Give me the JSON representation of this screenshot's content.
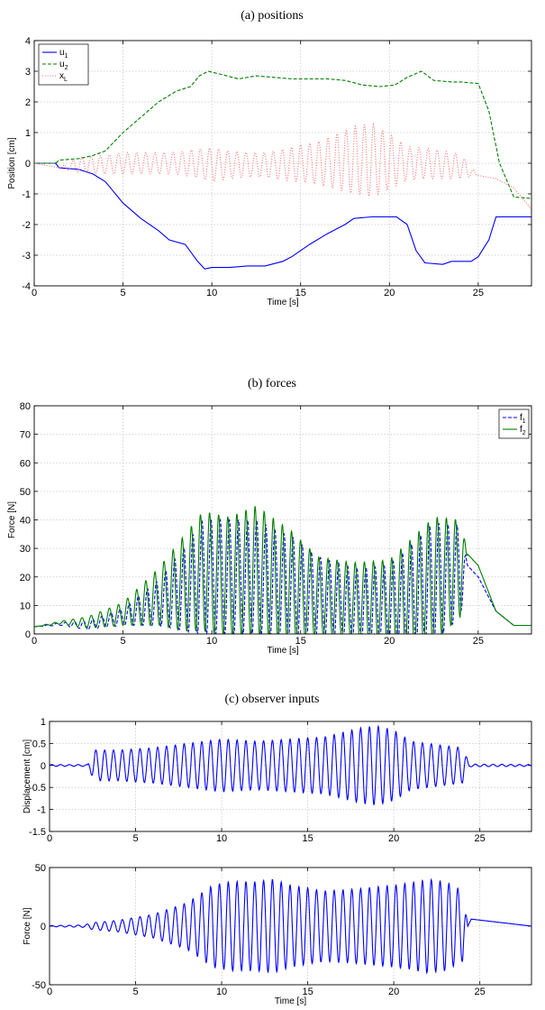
{
  "chart_data": [
    {
      "type": "line",
      "caption": "(a)  positions",
      "xlabel": "Time [s]",
      "ylabel": "Position [cm]",
      "xlim": [
        0,
        28
      ],
      "ylim": [
        -4,
        4
      ],
      "xticks": [
        "0",
        "5",
        "10",
        "15",
        "20",
        "25"
      ],
      "yticks": [
        "-4",
        "-3",
        "-2",
        "-1",
        "0",
        "1",
        "2",
        "3",
        "4"
      ],
      "grid": true,
      "legend": "top-left",
      "series": [
        {
          "name": "u",
          "sub": "1",
          "color": "#0000ff",
          "style": "solid",
          "x": [
            0,
            1.2,
            1.4,
            2.5,
            3.3,
            4,
            5,
            6,
            7,
            7.6,
            8.5,
            9.2,
            9.6,
            10,
            11,
            12,
            13,
            14,
            14.5,
            15.5,
            16.5,
            17.5,
            18,
            19,
            19.8,
            20.4,
            21,
            21.5,
            22,
            23,
            23.5,
            24,
            24.6,
            25,
            25.6,
            26,
            28
          ],
          "y": [
            0,
            0,
            -0.15,
            -0.2,
            -0.35,
            -0.6,
            -1.3,
            -1.8,
            -2.2,
            -2.5,
            -2.65,
            -3.2,
            -3.45,
            -3.4,
            -3.4,
            -3.35,
            -3.35,
            -3.2,
            -3.05,
            -2.65,
            -2.3,
            -2.0,
            -1.8,
            -1.75,
            -1.75,
            -1.75,
            -2.0,
            -2.85,
            -3.25,
            -3.3,
            -3.2,
            -3.2,
            -3.2,
            -3.05,
            -2.5,
            -1.75,
            -1.75
          ]
        },
        {
          "name": "u",
          "sub": "2",
          "color": "#007f00",
          "style": "dashed",
          "x": [
            0,
            1.2,
            1.4,
            2.5,
            3.3,
            4,
            5,
            6,
            7,
            8,
            8.8,
            9.3,
            9.8,
            10.5,
            11.5,
            12.5,
            13.5,
            14.5,
            15.5,
            16.5,
            17.5,
            18.5,
            19.5,
            20.3,
            21,
            21.8,
            22.5,
            23.5,
            24,
            25,
            25.6,
            26.2,
            27,
            28
          ],
          "y": [
            0,
            0,
            0.1,
            0.15,
            0.25,
            0.4,
            1.0,
            1.5,
            2.0,
            2.35,
            2.5,
            2.85,
            3.0,
            2.9,
            2.75,
            2.85,
            2.8,
            2.75,
            2.75,
            2.75,
            2.7,
            2.55,
            2.5,
            2.55,
            2.8,
            3.0,
            2.7,
            2.65,
            2.65,
            2.6,
            1.7,
            0.0,
            -1.1,
            -1.15
          ]
        },
        {
          "name": "x",
          "sub": "L",
          "color": "#ff6a6a",
          "style": "dotted",
          "x": [
            0,
            1.4,
            2.5,
            4,
            5,
            6,
            7,
            8,
            9,
            10,
            11,
            12,
            13,
            14,
            15,
            16,
            17,
            18,
            19,
            20,
            21,
            22,
            23,
            24,
            25,
            26,
            27,
            28
          ],
          "y": [
            0,
            -0.15,
            -0.05,
            -0.05,
            0,
            0,
            0,
            0,
            0,
            -0.05,
            -0.05,
            -0.05,
            -0.05,
            -0.05,
            0,
            0,
            0.05,
            0.1,
            0.1,
            0.05,
            0,
            0,
            -0.05,
            -0.1,
            -0.4,
            -0.5,
            -0.8,
            -1.5
          ],
          "osc_amp": [
            0,
            0,
            0.25,
            0.3,
            0.35,
            0.35,
            0.35,
            0.35,
            0.45,
            0.55,
            0.45,
            0.4,
            0.4,
            0.5,
            0.6,
            0.7,
            0.9,
            1.1,
            1.2,
            0.9,
            0.55,
            0.5,
            0.45,
            0.4,
            0,
            0,
            0,
            0
          ],
          "osc_freq_hz": 1.95
        }
      ]
    },
    {
      "type": "line",
      "caption": "(b)  forces",
      "xlabel": "Time [s]",
      "ylabel": "Force [N]",
      "xlim": [
        0,
        28
      ],
      "ylim": [
        0,
        80
      ],
      "xticks": [
        "0",
        "5",
        "10",
        "15",
        "20",
        "25"
      ],
      "yticks": [
        "0",
        "10",
        "20",
        "30",
        "40",
        "50",
        "60",
        "70",
        "80"
      ],
      "grid": true,
      "legend": "top-right",
      "series": [
        {
          "name": "f",
          "sub": "1",
          "color": "#0000ff",
          "style": "dashed",
          "x": [
            0,
            1.5,
            3,
            5,
            7,
            8.5,
            9.5,
            11,
            12.5,
            14.5,
            16,
            18,
            20,
            21.5,
            22.5,
            24,
            24.4,
            25,
            26,
            27,
            28
          ],
          "y": [
            2.5,
            3.5,
            3,
            6,
            11,
            16,
            20,
            20,
            20,
            16,
            13,
            10,
            10,
            13,
            18,
            22,
            24,
            20,
            8,
            3,
            3
          ],
          "osc_amp": [
            0,
            0.5,
            1.5,
            3,
            8,
            15,
            20,
            20,
            20,
            18,
            14,
            13,
            14,
            20,
            21,
            16,
            0,
            0,
            0,
            0,
            0
          ],
          "osc_freq_hz": 1.95,
          "osc_phase": -1.1
        },
        {
          "name": "f",
          "sub": "2",
          "color": "#007f00",
          "style": "solid",
          "x": [
            0,
            1.5,
            3,
            5,
            7,
            8.5,
            9.5,
            11,
            12.5,
            14.5,
            16,
            18,
            20,
            21.5,
            22.5,
            24,
            24.4,
            25,
            26,
            27,
            28
          ],
          "y": [
            2.5,
            4,
            4,
            7,
            13,
            18,
            22,
            20,
            22,
            17,
            13,
            11,
            11,
            14,
            19,
            23,
            28,
            24,
            8,
            3,
            3
          ],
          "osc_amp": [
            0,
            0.5,
            2,
            4,
            10,
            17,
            21,
            21,
            23,
            19,
            14,
            14,
            15,
            21,
            22,
            17,
            0,
            0,
            0,
            0,
            0
          ],
          "osc_freq_hz": 1.95,
          "osc_phase": 0
        }
      ]
    },
    {
      "type": "line",
      "caption": "(c)  observer inputs",
      "xlabel": "",
      "ylabel": "Displacement [cm]",
      "xlim": [
        0,
        28
      ],
      "ylim": [
        -1.5,
        1
      ],
      "xticks": [
        "0",
        "5",
        "10",
        "15",
        "20",
        "25"
      ],
      "yticks": [
        "-1.5",
        "-1",
        "-0.5",
        "0",
        "0.5",
        "1"
      ],
      "grid": true,
      "legend": "none",
      "series": [
        {
          "color": "#0000ff",
          "style": "solid",
          "x": [
            0,
            2.2,
            2.6,
            4,
            6,
            8,
            9,
            10,
            12,
            14,
            16,
            18,
            19,
            20,
            21,
            22,
            23,
            24,
            24.4,
            28
          ],
          "y": [
            0,
            0,
            0,
            0,
            0,
            0,
            0,
            0,
            0,
            0,
            0,
            0,
            0,
            0,
            0,
            0,
            0,
            0,
            0,
            0
          ],
          "osc_amp": [
            0.02,
            0.02,
            0.35,
            0.35,
            0.4,
            0.5,
            0.55,
            0.6,
            0.55,
            0.6,
            0.65,
            0.85,
            0.9,
            0.8,
            0.55,
            0.5,
            0.45,
            0.4,
            0.03,
            0.02
          ],
          "osc_freq_hz": 1.95
        }
      ]
    },
    {
      "type": "line",
      "caption": "",
      "xlabel": "Time [s]",
      "ylabel": "Force [N]",
      "xlim": [
        0,
        28
      ],
      "ylim": [
        -50,
        50
      ],
      "xticks": [
        "0",
        "5",
        "10",
        "15",
        "20",
        "25"
      ],
      "yticks": [
        "-50",
        "0",
        "50"
      ],
      "grid": true,
      "legend": "none",
      "series": [
        {
          "color": "#0000ff",
          "style": "solid",
          "x": [
            0,
            2,
            2.5,
            4,
            6,
            8,
            9.5,
            10.5,
            12,
            13,
            14,
            16,
            18,
            20,
            21,
            22,
            23,
            24,
            24.3,
            24.5,
            28
          ],
          "y": [
            0,
            0,
            0,
            0,
            0,
            0,
            0,
            0,
            0,
            0,
            0,
            0,
            0,
            0,
            0,
            0,
            0,
            0,
            0,
            6,
            0
          ],
          "osc_amp": [
            0.5,
            1,
            3,
            5,
            10,
            20,
            35,
            38,
            38,
            40,
            35,
            30,
            32,
            35,
            37,
            40,
            38,
            30,
            0,
            0,
            0
          ],
          "osc_freq_hz": 1.95
        }
      ]
    }
  ]
}
